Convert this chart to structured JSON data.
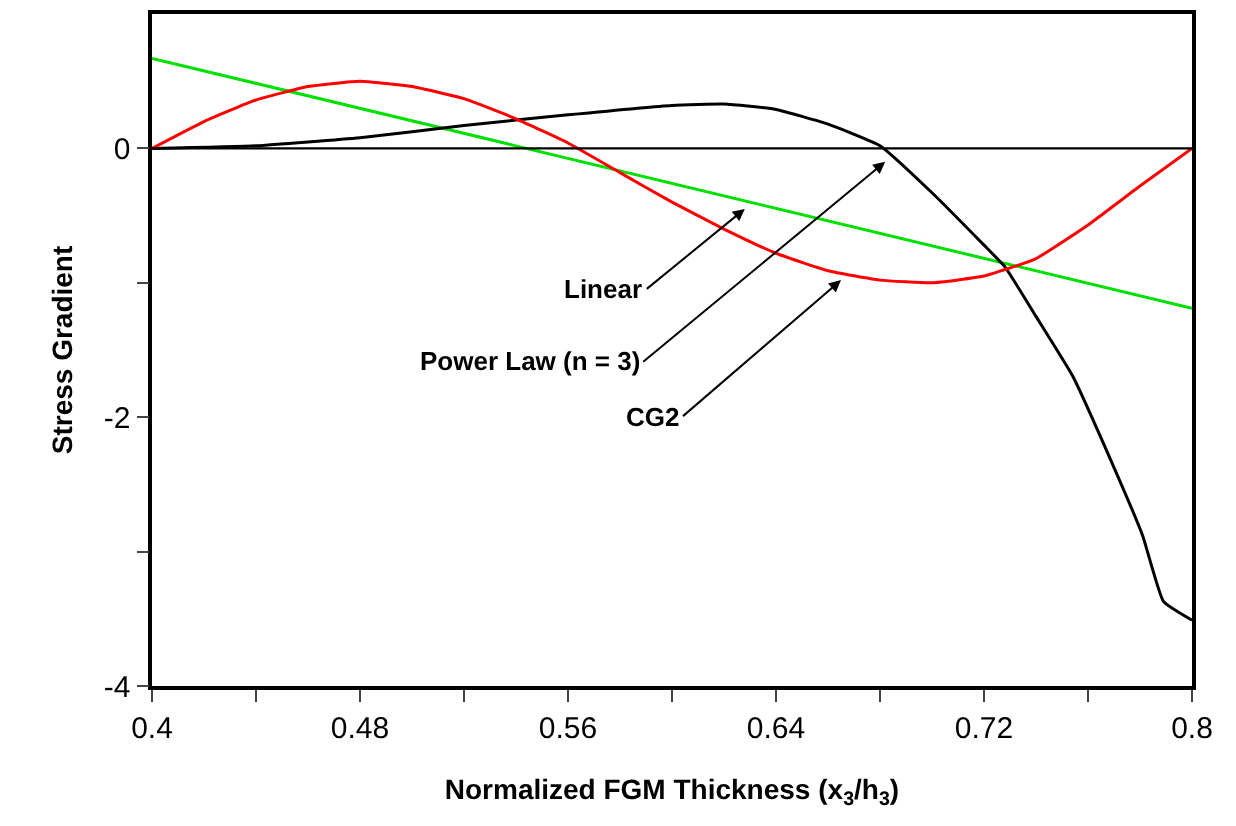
{
  "chart_data": {
    "type": "line",
    "xlabel": "Normalized FGM Thickness (x$_{3}$/h$_{3}$)",
    "ylabel": "Stress Gradient",
    "xlim": [
      0.4,
      0.8
    ],
    "ylim": [
      -4,
      1
    ],
    "xticks": [
      0.4,
      {
        "value": 0.44,
        "label": null
      },
      0.48,
      {
        "value": 0.52,
        "label": null
      },
      0.56,
      {
        "value": 0.6,
        "label": null
      },
      0.64,
      {
        "value": 0.68,
        "label": null
      },
      0.72,
      {
        "value": 0.76,
        "label": null
      },
      0.8
    ],
    "yticks": [
      -4,
      {
        "value": -3,
        "label": null
      },
      -2,
      {
        "value": -1,
        "label": null
      },
      0
    ],
    "marker": "none",
    "line_style": "solid",
    "ref_lines": [
      {
        "axis": "y",
        "value": 0,
        "color": "#000000"
      }
    ],
    "series": [
      {
        "color": "#00e000",
        "x": [
          0.4,
          0.8
        ],
        "values": [
          0.67,
          -1.19
        ]
      },
      {
        "color": "#000000",
        "x": [
          0.4,
          0.44,
          0.48,
          0.52,
          0.56,
          0.6,
          0.62,
          0.64,
          0.66,
          0.68,
          0.7,
          0.72,
          0.728,
          0.74,
          0.754,
          0.769,
          0.781,
          0.789,
          0.8
        ],
        "values": [
          0,
          0.02,
          0.08,
          0.17,
          0.25,
          0.32,
          0.33,
          0.29,
          0.18,
          0.02,
          -0.33,
          -0.72,
          -0.88,
          -1.25,
          -1.69,
          -2.33,
          -2.88,
          -3.37,
          -3.51
        ]
      },
      {
        "color": "#ff0000",
        "x": [
          0.4,
          0.42,
          0.44,
          0.46,
          0.48,
          0.5,
          0.52,
          0.54,
          0.56,
          0.58,
          0.6,
          0.62,
          0.64,
          0.66,
          0.68,
          0.7,
          0.72,
          0.74,
          0.76,
          0.78,
          0.8
        ],
        "values": [
          0,
          0.2,
          0.36,
          0.46,
          0.5,
          0.46,
          0.37,
          0.22,
          0.04,
          -0.18,
          -0.4,
          -0.6,
          -0.78,
          -0.91,
          -0.98,
          -1.0,
          -0.95,
          -0.82,
          -0.57,
          -0.28,
          0
        ]
      }
    ],
    "annotations": [
      {
        "text": "Linear",
        "x": 0.628,
        "y": -0.45
      },
      {
        "text": "Power Law (n = 3)",
        "x": 0.682,
        "y": -0.1
      },
      {
        "text": "CG2",
        "x": 0.665,
        "y": -0.98
      }
    ]
  }
}
